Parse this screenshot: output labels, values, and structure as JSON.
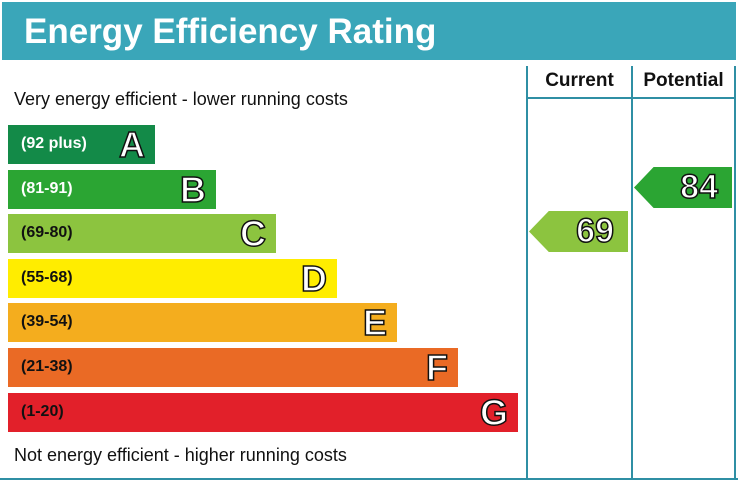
{
  "chart_data": {
    "type": "bar",
    "title": "Energy Efficiency Rating",
    "top_note": "Very energy efficient - lower running costs",
    "bottom_note": "Not energy efficient - higher running costs",
    "columns": [
      "Current",
      "Potential"
    ],
    "bands": [
      {
        "letter": "A",
        "range": "(92 plus)",
        "color": "#138a48",
        "text_color": "#ffffff"
      },
      {
        "letter": "B",
        "range": "(81-91)",
        "color": "#2ba533",
        "text_color": "#ffffff"
      },
      {
        "letter": "C",
        "range": "(69-80)",
        "color": "#8cc43f",
        "text_color": "#111111"
      },
      {
        "letter": "D",
        "range": "(55-68)",
        "color": "#ffed00",
        "text_color": "#111111"
      },
      {
        "letter": "E",
        "range": "(39-54)",
        "color": "#f4ad1e",
        "text_color": "#111111"
      },
      {
        "letter": "F",
        "range": "(21-38)",
        "color": "#ea6a25",
        "text_color": "#111111"
      },
      {
        "letter": "G",
        "range": "(1-20)",
        "color": "#e2202a",
        "text_color": "#111111"
      }
    ],
    "current": {
      "value": "69",
      "band": "C",
      "color": "#8cc43f"
    },
    "potential": {
      "value": "84",
      "band": "B",
      "color": "#2ba533"
    }
  }
}
